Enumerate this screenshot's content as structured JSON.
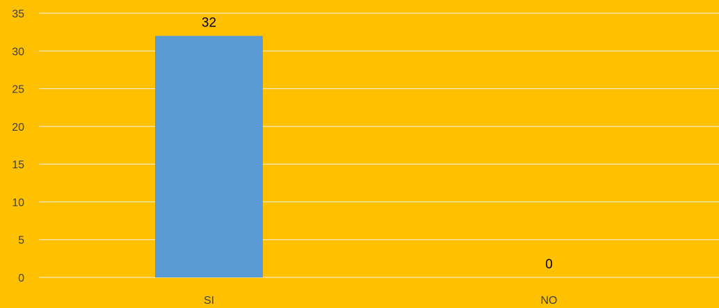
{
  "chart_data": {
    "type": "bar",
    "title": "",
    "xlabel": "",
    "ylabel": "",
    "categories": [
      "SI",
      "NO"
    ],
    "values": [
      32,
      0
    ],
    "data_labels": [
      "32",
      "0"
    ],
    "ylim": [
      0,
      35
    ],
    "yticks": [
      0,
      5,
      10,
      15,
      20,
      25,
      30,
      35
    ],
    "grid": true,
    "legend": "none",
    "colors": {
      "background": "#FFC000",
      "bar": "#5B9BD5",
      "gridline": "#F2F2F2",
      "tick_text": "#404040",
      "data_label_text": "#000000"
    }
  }
}
